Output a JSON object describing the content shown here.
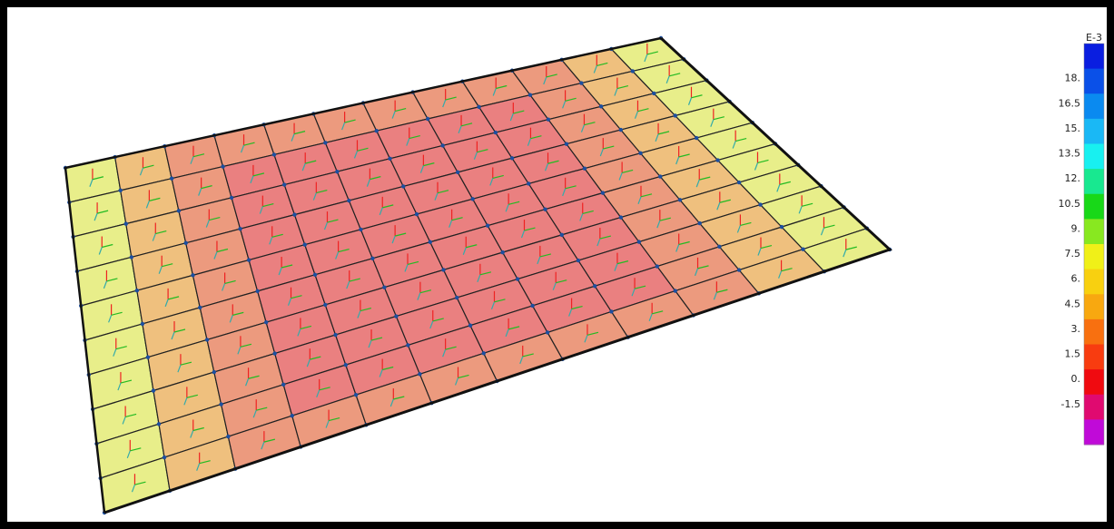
{
  "legend": {
    "unit": "E-3",
    "labels": [
      "18.",
      "16.5",
      "15.",
      "13.5",
      "12.",
      "10.5",
      "9.",
      "7.5",
      "6.",
      "4.5",
      "3.",
      "1.5",
      "0.",
      "-1.5"
    ]
  }
}
